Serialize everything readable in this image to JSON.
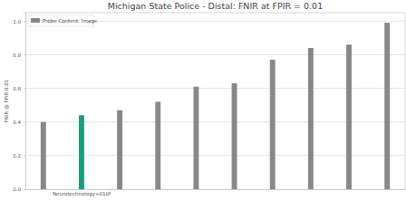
{
  "chart_data": {
    "type": "bar",
    "title": "Michigan State Police - Distal: FNIR at FPIR = 0.01",
    "y_label": "FNIR @ FPIR 0.01",
    "categories": [
      null,
      "Neurotechnology+010f",
      null,
      null,
      null,
      null,
      null,
      null,
      null,
      null
    ],
    "series": [
      {
        "name": "Probe Content: Image",
        "color": "#888888",
        "values": [
          0.4,
          0.44,
          0.47,
          0.52,
          0.61,
          0.63,
          0.77,
          0.84,
          0.86,
          0.99
        ],
        "colors": [
          "#888888",
          "#1a9c7e",
          "#888888",
          "#888888",
          "#888888",
          "#888888",
          "#888888",
          "#888888",
          "#888888",
          "#888888"
        ]
      }
    ],
    "ylim": [
      0,
      1.05
    ],
    "yticks": [
      {
        "value": 0,
        "label": "0.0"
      },
      {
        "value": 0.2,
        "label": "0.2"
      },
      {
        "value": 0.4,
        "label": "0.4"
      },
      {
        "value": 0.6,
        "label": "0.6"
      },
      {
        "value": 0.8,
        "label": "0.8"
      },
      {
        "value": 1.0,
        "label": "1.0"
      }
    ],
    "grid": true,
    "legend": "upper left"
  }
}
